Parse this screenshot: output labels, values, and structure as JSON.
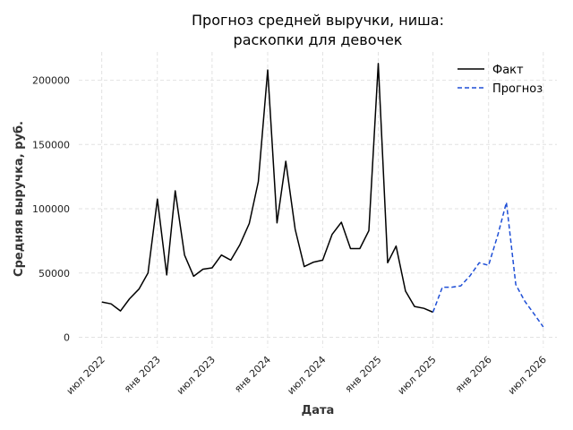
{
  "chart_data": {
    "type": "line",
    "title_lines": [
      "Прогноз средней выручки, ниша:",
      "раскопки для девочек"
    ],
    "xlabel": "Дата",
    "ylabel": "Средняя выручка, руб.",
    "ylim": [
      -8000,
      222000
    ],
    "xlim": [
      "2022-04-16",
      "2026-08-15"
    ],
    "yticks": [
      0,
      50000,
      100000,
      150000,
      200000
    ],
    "ytick_labels": [
      "0",
      "50000",
      "100000",
      "150000",
      "200000"
    ],
    "xticks": [
      "2022-07-01",
      "2023-01-01",
      "2023-07-01",
      "2024-01-01",
      "2024-07-01",
      "2025-01-01",
      "2025-07-01",
      "2026-01-01",
      "2026-07-01"
    ],
    "xtick_labels": [
      "июл 2022",
      "янв 2023",
      "июл 2023",
      "янв 2024",
      "июл 2024",
      "янв 2025",
      "июл 2025",
      "янв 2026",
      "июл 2026"
    ],
    "grid": true,
    "legend_position": "top-right",
    "series": [
      {
        "name": "Факт",
        "color": "#000000",
        "style": "solid",
        "x": [
          "2022-07-01",
          "2022-08-01",
          "2022-09-01",
          "2022-10-01",
          "2022-11-01",
          "2022-12-01",
          "2023-01-01",
          "2023-02-01",
          "2023-03-01",
          "2023-04-01",
          "2023-05-01",
          "2023-06-01",
          "2023-07-01",
          "2023-08-01",
          "2023-09-01",
          "2023-10-01",
          "2023-11-01",
          "2023-12-01",
          "2024-01-01",
          "2024-02-01",
          "2024-03-01",
          "2024-04-01",
          "2024-05-01",
          "2024-06-01",
          "2024-07-01",
          "2024-08-01",
          "2024-09-01",
          "2024-10-01",
          "2024-11-01",
          "2024-12-01",
          "2025-01-01",
          "2025-02-01",
          "2025-03-01",
          "2025-04-01",
          "2025-05-01",
          "2025-06-01",
          "2025-07-01"
        ],
        "y": [
          27500,
          26000,
          20500,
          30000,
          37500,
          50000,
          107500,
          48500,
          114000,
          64000,
          47500,
          53000,
          54000,
          64000,
          60000,
          72000,
          88500,
          121000,
          208000,
          89000,
          137000,
          84000,
          55000,
          58500,
          60000,
          80000,
          89500,
          69000,
          69000,
          83000,
          213000,
          58000,
          71000,
          36000,
          24000,
          22500,
          19500
        ]
      },
      {
        "name": "Прогноз",
        "color": "#1f4fd6",
        "style": "dashed",
        "x": [
          "2025-07-01",
          "2025-08-01",
          "2025-09-01",
          "2025-10-01",
          "2025-11-01",
          "2025-12-01",
          "2026-01-01",
          "2026-02-01",
          "2026-03-01",
          "2026-04-01",
          "2026-05-01",
          "2026-06-01",
          "2026-07-01"
        ],
        "y": [
          19500,
          39000,
          39000,
          40000,
          48000,
          58000,
          56000,
          80000,
          105000,
          41000,
          28000,
          18000,
          8000
        ]
      }
    ]
  }
}
